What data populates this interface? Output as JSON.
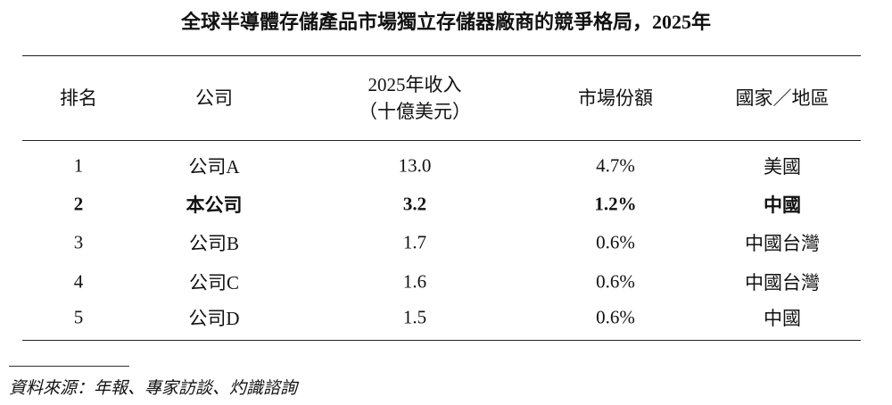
{
  "header": {
    "title": "全球半導體存儲產品市場獨立存儲器廠商的競爭格局，2025年"
  },
  "table": {
    "headers": [
      "排名",
      "公司",
      [
        "2025年收入",
        "（十億美元）"
      ],
      "市場份額",
      "國家／地區"
    ],
    "rows": [
      [
        "1",
        "公司A",
        "13.0",
        "4.7%",
        "美國"
      ],
      [
        "2",
        "本公司",
        "3.2",
        "1.2%",
        "中國"
      ],
      [
        "3",
        "公司B",
        "1.7",
        "0.6%",
        "中國台灣"
      ],
      [
        "4",
        "公司C",
        "1.6",
        "0.6%",
        "中國台灣"
      ],
      [
        "5",
        "公司D",
        "1.5",
        "0.6%",
        "中國"
      ]
    ],
    "highlight_row": 1
  },
  "footer": {
    "source": "資料來源：年報、專家訪談、灼識諮詢"
  }
}
